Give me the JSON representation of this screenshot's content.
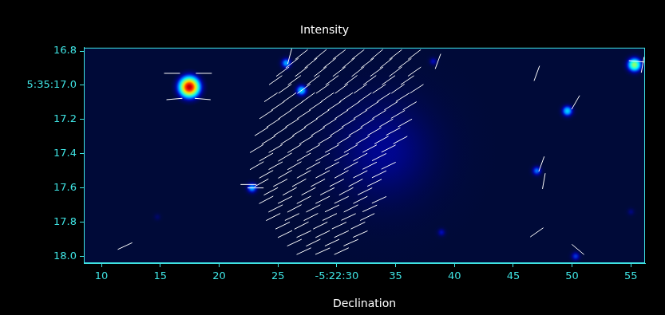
{
  "chart_data": {
    "type": "vector_map",
    "title": "Intensity",
    "x_label": "Declination",
    "xlim": [
      8.5,
      56.2
    ],
    "xticks": [
      10,
      15,
      20,
      25,
      {
        "value": 30,
        "label": "-5:22:30"
      },
      35,
      40,
      45,
      50,
      55
    ],
    "ylim": [
      16.78,
      18.04
    ],
    "yticks": [
      16.8,
      {
        "value": 17,
        "label": "5:35:17.0"
      },
      17.2,
      17.4,
      17.6,
      17.8,
      {
        "value": 18,
        "label": "18.0"
      }
    ],
    "grid": false,
    "diffuse": {
      "x": [
        34.0
      ],
      "y": [
        17.38
      ],
      "peak": [
        0.12
      ]
    },
    "sources": {
      "x": [
        17.47,
        55.3,
        25.7,
        27.0,
        49.6,
        22.8,
        47.0,
        38.2,
        38.9,
        50.3,
        14.75,
        55.0
      ],
      "y": [
        17.01,
        16.88,
        16.87,
        17.03,
        17.15,
        17.6,
        17.5,
        16.86,
        17.86,
        18.0,
        17.77,
        17.74
      ],
      "peak": [
        1.0,
        0.55,
        0.3,
        0.35,
        0.35,
        0.3,
        0.25,
        0.15,
        0.15,
        0.2,
        0.08,
        0.1
      ]
    },
    "vectors": [
      [
        27.0,
        16.82,
        38
      ],
      [
        28.6,
        16.82,
        39
      ],
      [
        30.2,
        16.82,
        37
      ],
      [
        31.8,
        16.82,
        38
      ],
      [
        33.4,
        16.82,
        40
      ],
      [
        35.0,
        16.82,
        38
      ],
      [
        36.6,
        16.82,
        37
      ],
      [
        26.2,
        16.87,
        37
      ],
      [
        27.8,
        16.87,
        38
      ],
      [
        29.4,
        16.87,
        38
      ],
      [
        31.0,
        16.87,
        39
      ],
      [
        32.6,
        16.87,
        37
      ],
      [
        34.2,
        16.87,
        38
      ],
      [
        35.8,
        16.87,
        36
      ],
      [
        25.4,
        16.92,
        36
      ],
      [
        27.0,
        16.92,
        37
      ],
      [
        28.6,
        16.92,
        38
      ],
      [
        30.2,
        16.92,
        37
      ],
      [
        31.8,
        16.92,
        38
      ],
      [
        33.4,
        16.92,
        36
      ],
      [
        35.0,
        16.92,
        37
      ],
      [
        36.6,
        16.92,
        35
      ],
      [
        24.8,
        16.97,
        35
      ],
      [
        26.4,
        16.97,
        36
      ],
      [
        28.0,
        16.97,
        37
      ],
      [
        29.6,
        16.97,
        36
      ],
      [
        31.2,
        16.97,
        37
      ],
      [
        32.8,
        16.97,
        36
      ],
      [
        34.4,
        16.97,
        35
      ],
      [
        36.0,
        16.97,
        34
      ],
      [
        25.6,
        17.02,
        35
      ],
      [
        27.2,
        17.02,
        36
      ],
      [
        28.8,
        17.02,
        35
      ],
      [
        30.4,
        17.02,
        36
      ],
      [
        32.0,
        17.02,
        35
      ],
      [
        33.6,
        17.02,
        34
      ],
      [
        35.2,
        17.02,
        35
      ],
      [
        36.8,
        17.02,
        33
      ],
      [
        24.4,
        17.07,
        34
      ],
      [
        26.0,
        17.07,
        35
      ],
      [
        27.6,
        17.07,
        36
      ],
      [
        29.2,
        17.07,
        35
      ],
      [
        30.8,
        17.07,
        34
      ],
      [
        32.4,
        17.07,
        35
      ],
      [
        34.0,
        17.07,
        33
      ],
      [
        35.6,
        17.07,
        32
      ],
      [
        25.0,
        17.12,
        34
      ],
      [
        26.6,
        17.12,
        35
      ],
      [
        28.2,
        17.12,
        34
      ],
      [
        29.8,
        17.12,
        33
      ],
      [
        31.4,
        17.12,
        34
      ],
      [
        33.0,
        17.12,
        33
      ],
      [
        34.6,
        17.12,
        32
      ],
      [
        36.2,
        17.12,
        31
      ],
      [
        24.0,
        17.17,
        33
      ],
      [
        25.6,
        17.17,
        34
      ],
      [
        27.2,
        17.17,
        33
      ],
      [
        28.8,
        17.17,
        34
      ],
      [
        30.4,
        17.17,
        33
      ],
      [
        32.0,
        17.17,
        32
      ],
      [
        33.6,
        17.17,
        31
      ],
      [
        35.2,
        17.17,
        30
      ],
      [
        24.6,
        17.22,
        33
      ],
      [
        26.2,
        17.22,
        32
      ],
      [
        27.8,
        17.22,
        33
      ],
      [
        29.4,
        17.22,
        32
      ],
      [
        31.0,
        17.22,
        31
      ],
      [
        32.6,
        17.22,
        32
      ],
      [
        34.2,
        17.22,
        30
      ],
      [
        35.8,
        17.22,
        29
      ],
      [
        23.6,
        17.27,
        32
      ],
      [
        25.2,
        17.27,
        33
      ],
      [
        26.8,
        17.27,
        32
      ],
      [
        28.4,
        17.27,
        31
      ],
      [
        30.0,
        17.27,
        32
      ],
      [
        31.6,
        17.27,
        30
      ],
      [
        33.2,
        17.27,
        30
      ],
      [
        34.8,
        17.27,
        28
      ],
      [
        24.2,
        17.32,
        31
      ],
      [
        25.8,
        17.32,
        32
      ],
      [
        27.4,
        17.32,
        31
      ],
      [
        29.0,
        17.32,
        30
      ],
      [
        30.6,
        17.32,
        31
      ],
      [
        32.2,
        17.32,
        30
      ],
      [
        33.8,
        17.32,
        29
      ],
      [
        35.4,
        17.32,
        28
      ],
      [
        23.2,
        17.37,
        31
      ],
      [
        24.8,
        17.37,
        30
      ],
      [
        26.4,
        17.37,
        31
      ],
      [
        28.0,
        17.37,
        30
      ],
      [
        29.6,
        17.37,
        29
      ],
      [
        31.2,
        17.37,
        30
      ],
      [
        32.8,
        17.37,
        28
      ],
      [
        34.4,
        17.37,
        27
      ],
      [
        24.0,
        17.42,
        30
      ],
      [
        25.6,
        17.42,
        31
      ],
      [
        27.2,
        17.42,
        30
      ],
      [
        28.8,
        17.42,
        29
      ],
      [
        30.4,
        17.42,
        28
      ],
      [
        32.0,
        17.42,
        29
      ],
      [
        33.6,
        17.42,
        27
      ],
      [
        23.2,
        17.47,
        30
      ],
      [
        24.8,
        17.47,
        29
      ],
      [
        26.4,
        17.47,
        30
      ],
      [
        28.0,
        17.47,
        29
      ],
      [
        29.6,
        17.47,
        28
      ],
      [
        31.2,
        17.47,
        29
      ],
      [
        32.8,
        17.47,
        27
      ],
      [
        34.4,
        17.47,
        26
      ],
      [
        24.0,
        17.52,
        29
      ],
      [
        25.6,
        17.52,
        30
      ],
      [
        27.2,
        17.52,
        29
      ],
      [
        28.8,
        17.52,
        28
      ],
      [
        30.4,
        17.52,
        29
      ],
      [
        32.0,
        17.52,
        27
      ],
      [
        33.6,
        17.52,
        26
      ],
      [
        23.6,
        17.57,
        29
      ],
      [
        25.2,
        17.57,
        28
      ],
      [
        26.8,
        17.57,
        29
      ],
      [
        28.4,
        17.57,
        28
      ],
      [
        30.0,
        17.57,
        27
      ],
      [
        31.6,
        17.57,
        28
      ],
      [
        33.2,
        17.57,
        26
      ],
      [
        24.4,
        17.62,
        28
      ],
      [
        26.0,
        17.62,
        29
      ],
      [
        27.6,
        17.62,
        28
      ],
      [
        29.2,
        17.62,
        27
      ],
      [
        30.8,
        17.62,
        28
      ],
      [
        32.4,
        17.62,
        26
      ],
      [
        24.0,
        17.67,
        28
      ],
      [
        25.6,
        17.67,
        27
      ],
      [
        27.2,
        17.67,
        28
      ],
      [
        28.8,
        17.67,
        27
      ],
      [
        30.4,
        17.67,
        26
      ],
      [
        32.0,
        17.67,
        27
      ],
      [
        33.6,
        17.67,
        25
      ],
      [
        24.8,
        17.72,
        27
      ],
      [
        26.4,
        17.72,
        28
      ],
      [
        28.0,
        17.72,
        27
      ],
      [
        29.6,
        17.72,
        26
      ],
      [
        31.2,
        17.72,
        27
      ],
      [
        32.8,
        17.72,
        25
      ],
      [
        24.6,
        17.77,
        27
      ],
      [
        26.2,
        17.77,
        26
      ],
      [
        27.8,
        17.77,
        27
      ],
      [
        29.4,
        17.77,
        26
      ],
      [
        31.0,
        17.77,
        25
      ],
      [
        32.6,
        17.77,
        26
      ],
      [
        25.4,
        17.82,
        26
      ],
      [
        27.0,
        17.82,
        27
      ],
      [
        28.6,
        17.82,
        26
      ],
      [
        30.2,
        17.82,
        25
      ],
      [
        31.8,
        17.82,
        26
      ],
      [
        25.6,
        17.87,
        26
      ],
      [
        27.2,
        17.87,
        25
      ],
      [
        28.8,
        17.87,
        26
      ],
      [
        30.4,
        17.87,
        25
      ],
      [
        32.0,
        17.87,
        24
      ],
      [
        26.4,
        17.92,
        25
      ],
      [
        28.0,
        17.92,
        26
      ],
      [
        29.6,
        17.92,
        25
      ],
      [
        31.2,
        17.92,
        24
      ],
      [
        27.2,
        17.97,
        25
      ],
      [
        28.8,
        17.97,
        24
      ],
      [
        30.4,
        17.97,
        25
      ],
      [
        16.0,
        16.93,
        0
      ],
      [
        18.7,
        16.93,
        0
      ],
      [
        16.2,
        17.08,
        5
      ],
      [
        18.6,
        17.08,
        -5
      ],
      [
        55.5,
        16.86,
        -5
      ],
      [
        56.0,
        16.88,
        80
      ],
      [
        50.3,
        17.1,
        60
      ],
      [
        47.4,
        17.46,
        70
      ],
      [
        47.6,
        17.56,
        80
      ],
      [
        47.0,
        16.93,
        70
      ],
      [
        47.0,
        17.86,
        35
      ],
      [
        50.5,
        17.96,
        -40
      ],
      [
        12.0,
        17.94,
        25
      ],
      [
        26.0,
        16.83,
        75
      ],
      [
        22.5,
        17.58,
        0
      ],
      [
        23.1,
        17.6,
        0
      ],
      [
        38.6,
        16.86,
        70
      ]
    ]
  }
}
